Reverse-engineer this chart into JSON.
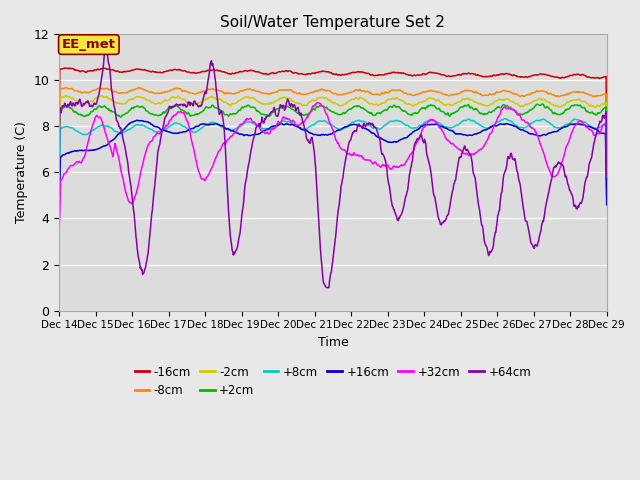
{
  "title": "Soil/Water Temperature Set 2",
  "xlabel": "Time",
  "ylabel": "Temperature (C)",
  "ylim": [
    0,
    12
  ],
  "yticks": [
    0,
    2,
    4,
    6,
    8,
    10,
    12
  ],
  "fig_bg": "#e8e8e8",
  "plot_bg": "#dcdcdc",
  "annotation_text": "EE_met",
  "annotation_bg": "#f5e642",
  "annotation_border": "#8b0000",
  "x_labels": [
    "Dec 14",
    "Dec 15",
    "Dec 16",
    "Dec 17",
    "Dec 18",
    "Dec 19",
    "Dec 20",
    "Dec 21",
    "Dec 22",
    "Dec 23",
    "Dec 24",
    "Dec 25",
    "Dec 26",
    "Dec 27",
    "Dec 28",
    "Dec 29"
  ],
  "series": [
    {
      "label": "-16cm",
      "color": "#cc0000"
    },
    {
      "label": "-8cm",
      "color": "#ff8800"
    },
    {
      "label": "-2cm",
      "color": "#cccc00"
    },
    {
      "label": "+2cm",
      "color": "#00bb00"
    },
    {
      "label": "+8cm",
      "color": "#00cccc"
    },
    {
      "label": "+16cm",
      "color": "#0000cc"
    },
    {
      "label": "+32cm",
      "color": "#ff00ff"
    },
    {
      "label": "+64cm",
      "color": "#8800aa"
    }
  ]
}
